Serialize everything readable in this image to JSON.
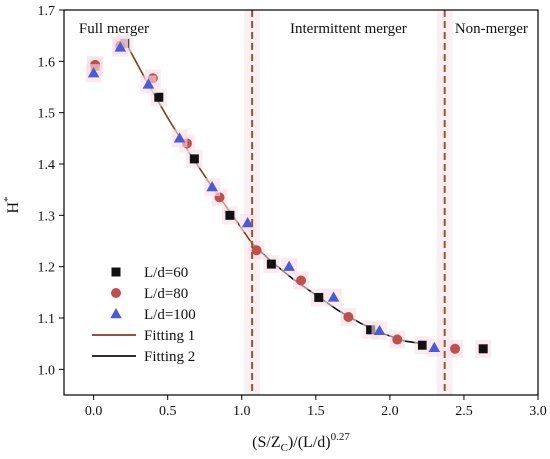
{
  "chart_data": {
    "type": "scatter",
    "title": "",
    "xlabel": {
      "base": "(S/Z",
      "sub": "C",
      "mid": ")/(L/d)",
      "sup": "0.27"
    },
    "ylabel": {
      "base": "H",
      "sup": "*"
    },
    "xlim": [
      -0.2,
      3.0
    ],
    "ylim": [
      0.95,
      1.7
    ],
    "xticks": [
      0.0,
      0.5,
      1.0,
      1.5,
      2.0,
      2.5,
      3.0
    ],
    "xtick_labels": [
      "0.0",
      "0.5",
      "1.0",
      "1.5",
      "2.0",
      "2.5",
      "3.0"
    ],
    "yticks": [
      1.0,
      1.1,
      1.2,
      1.3,
      1.4,
      1.5,
      1.6,
      1.7
    ],
    "ytick_labels": [
      "1.0",
      "1.1",
      "1.2",
      "1.3",
      "1.4",
      "1.5",
      "1.6",
      "1.7"
    ],
    "grid": false,
    "legend_position": "bottom-left",
    "regions": [
      {
        "label": "Full merger",
        "from": -0.2,
        "to": 1.07
      },
      {
        "label": "Intermittent merger",
        "from": 1.07,
        "to": 2.37
      },
      {
        "label": "Non-merger",
        "from": 2.37,
        "to": 3.0
      }
    ],
    "dividers": [
      1.07,
      2.37
    ],
    "divider_color": "#a0522d",
    "series": [
      {
        "name": "L/d=60",
        "marker": "square",
        "color": "#111111",
        "points": [
          [
            0.01,
            1.59
          ],
          [
            0.21,
            1.635
          ],
          [
            0.44,
            1.53
          ],
          [
            0.68,
            1.41
          ],
          [
            0.92,
            1.3
          ],
          [
            1.2,
            1.205
          ],
          [
            1.52,
            1.14
          ],
          [
            1.87,
            1.077
          ],
          [
            2.22,
            1.047
          ],
          [
            2.63,
            1.04
          ]
        ]
      },
      {
        "name": "L/d=80",
        "marker": "circle",
        "color": "#c0504d",
        "points": [
          [
            0.01,
            1.593
          ],
          [
            0.18,
            1.63
          ],
          [
            0.4,
            1.567
          ],
          [
            0.63,
            1.44
          ],
          [
            0.85,
            1.335
          ],
          [
            1.1,
            1.232
          ],
          [
            1.4,
            1.173
          ],
          [
            1.72,
            1.102
          ],
          [
            2.05,
            1.058
          ],
          [
            2.44,
            1.04
          ]
        ]
      },
      {
        "name": "L/d=100",
        "marker": "triangle",
        "color": "#4a5bd6",
        "points": [
          [
            0.0,
            1.577
          ],
          [
            0.18,
            1.627
          ],
          [
            0.37,
            1.555
          ],
          [
            0.58,
            1.45
          ],
          [
            0.8,
            1.355
          ],
          [
            1.04,
            1.285
          ],
          [
            1.32,
            1.2
          ],
          [
            1.62,
            1.14
          ],
          [
            1.93,
            1.075
          ],
          [
            2.3,
            1.042
          ]
        ]
      }
    ],
    "fits": [
      {
        "name": "Fitting 1",
        "color": "#8b3a1a",
        "points": [
          [
            0.21,
            1.64
          ],
          [
            0.35,
            1.565
          ],
          [
            0.5,
            1.49
          ],
          [
            0.65,
            1.42
          ],
          [
            0.8,
            1.355
          ],
          [
            0.95,
            1.295
          ],
          [
            1.07,
            1.245
          ]
        ]
      },
      {
        "name": "Fitting 2",
        "color": "#111111",
        "points": [
          [
            1.07,
            1.245
          ],
          [
            1.2,
            1.21
          ],
          [
            1.35,
            1.175
          ],
          [
            1.5,
            1.145
          ],
          [
            1.65,
            1.115
          ],
          [
            1.8,
            1.09
          ],
          [
            1.95,
            1.07
          ],
          [
            2.1,
            1.055
          ],
          [
            2.22,
            1.05
          ]
        ]
      }
    ]
  }
}
